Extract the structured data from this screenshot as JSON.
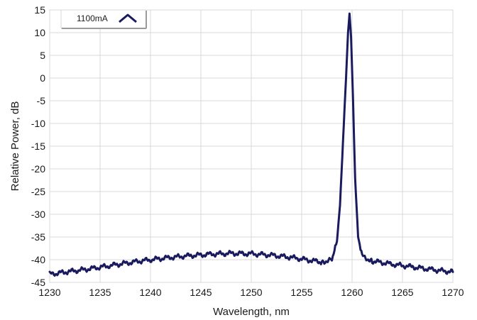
{
  "chart_data": {
    "type": "line",
    "xlabel": "Wavelength, nm",
    "ylabel": "Relative Power, dB",
    "xlim": [
      1230,
      1270
    ],
    "ylim": [
      -45,
      15
    ],
    "x_ticks": [
      1230,
      1235,
      1240,
      1245,
      1250,
      1255,
      1260,
      1265,
      1270
    ],
    "y_ticks": [
      15,
      10,
      5,
      0,
      -5,
      -10,
      -15,
      -20,
      -25,
      -30,
      -35,
      -40,
      -45
    ],
    "grid": true,
    "legend_position": "top-left",
    "series": [
      {
        "name": "1100mA",
        "color": "#1a1a5e",
        "x": [
          1230,
          1232,
          1234,
          1236,
          1238,
          1240,
          1242,
          1244,
          1246,
          1248,
          1250,
          1252,
          1254,
          1256,
          1257,
          1258,
          1258.5,
          1258.8,
          1259.1,
          1259.4,
          1259.6,
          1259.75,
          1259.9,
          1260.1,
          1260.3,
          1260.6,
          1261,
          1262,
          1264,
          1266,
          1268,
          1270
        ],
        "y": [
          -43.2,
          -42.6,
          -42.0,
          -41.3,
          -40.6,
          -40.0,
          -39.5,
          -39.1,
          -38.8,
          -38.6,
          -38.7,
          -39.0,
          -39.5,
          -40.2,
          -40.5,
          -40.0,
          -36.0,
          -28.0,
          -14.0,
          0.0,
          10.0,
          14.2,
          9.0,
          -5.0,
          -22.0,
          -35.0,
          -39.2,
          -40.3,
          -41.0,
          -41.6,
          -42.2,
          -42.7
        ]
      }
    ]
  }
}
